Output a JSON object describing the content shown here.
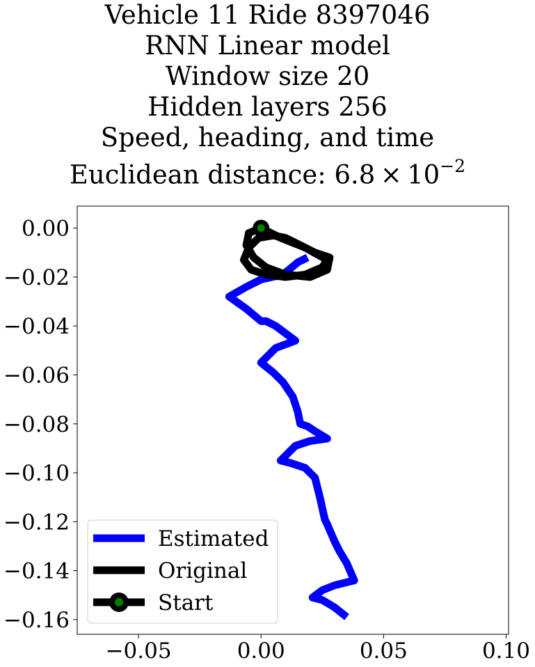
{
  "title": {
    "line1": "Vehicle 11 Ride 8397046",
    "line2": "RNN Linear model",
    "line3": "Window size 20",
    "line4": "Hidden layers 256",
    "line5": "Speed, heading, and time",
    "line6_prefix": "Euclidean distance: 6.8 × 10",
    "line6_exponent": "−2"
  },
  "chart_data": {
    "type": "line",
    "xlim": [
      -0.075,
      0.101
    ],
    "ylim": [
      -0.166,
      0.009
    ],
    "xticks": [
      -0.05,
      0.0,
      0.05,
      0.1
    ],
    "xtick_labels": [
      "−0.05",
      "0.00",
      "0.05",
      "0.10"
    ],
    "yticks": [
      0.0,
      -0.02,
      -0.04,
      -0.06,
      -0.08,
      -0.1,
      -0.12,
      -0.14,
      -0.16
    ],
    "ytick_labels": [
      "0.00",
      "−0.02",
      "−0.04",
      "−0.06",
      "−0.08",
      "−0.10",
      "−0.12",
      "−0.14",
      "−0.16"
    ],
    "grid": false,
    "legend_position": "lower-left",
    "series": [
      {
        "name": "Estimated",
        "color": "#0000ff",
        "x": [
          0.019,
          0.015,
          0.009,
          0.0,
          -0.006,
          -0.013,
          -0.006,
          0.0,
          0.002,
          0.006,
          0.014,
          0.006,
          0.0,
          0.005,
          0.009,
          0.013,
          0.015,
          0.016,
          0.019,
          0.022,
          0.027,
          0.02,
          0.014,
          0.008,
          0.012,
          0.018,
          0.022,
          0.024,
          0.026,
          0.027,
          0.03,
          0.032,
          0.035,
          0.038,
          0.03,
          0.025,
          0.021,
          0.025,
          0.03,
          0.035
        ],
        "y": [
          -0.012,
          -0.014,
          -0.019,
          -0.021,
          -0.024,
          -0.028,
          -0.033,
          -0.038,
          -0.038,
          -0.04,
          -0.046,
          -0.049,
          -0.055,
          -0.059,
          -0.063,
          -0.069,
          -0.075,
          -0.08,
          -0.081,
          -0.083,
          -0.086,
          -0.087,
          -0.089,
          -0.095,
          -0.096,
          -0.098,
          -0.102,
          -0.11,
          -0.119,
          -0.121,
          -0.128,
          -0.132,
          -0.137,
          -0.144,
          -0.146,
          -0.148,
          -0.151,
          -0.152,
          -0.155,
          -0.159
        ]
      },
      {
        "name": "Original",
        "color": "#000000",
        "x": [
          0.0,
          -0.005,
          -0.006,
          -0.003,
          0.002,
          0.01,
          0.02,
          0.027,
          0.028,
          0.022,
          0.016,
          0.01,
          0.005,
          -0.001,
          -0.005,
          -0.007,
          -0.004,
          0.002,
          0.01,
          0.018,
          0.025,
          0.027,
          0.018,
          0.008,
          0.002,
          0.0
        ],
        "y": [
          0.0,
          -0.002,
          -0.007,
          -0.012,
          -0.016,
          -0.019,
          -0.02,
          -0.017,
          -0.012,
          -0.01,
          -0.007,
          -0.004,
          -0.003,
          -0.004,
          -0.008,
          -0.013,
          -0.017,
          -0.019,
          -0.02,
          -0.019,
          -0.016,
          -0.013,
          -0.008,
          -0.004,
          -0.001,
          0.0
        ]
      }
    ],
    "start_marker": {
      "name": "Start",
      "x": 0.0,
      "y": 0.0,
      "edge_color": "#000000",
      "face_color": "#008000"
    }
  }
}
